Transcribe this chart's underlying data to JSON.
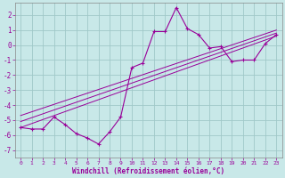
{
  "xlabel": "Windchill (Refroidissement éolien,°C)",
  "background_color": "#c8e8e8",
  "grid_color": "#a0c8c8",
  "line_color": "#990099",
  "xlim": [
    -0.5,
    23.5
  ],
  "ylim": [
    -7.5,
    2.8
  ],
  "xticks": [
    0,
    1,
    2,
    3,
    4,
    5,
    6,
    7,
    8,
    9,
    10,
    11,
    12,
    13,
    14,
    15,
    16,
    17,
    18,
    19,
    20,
    21,
    22,
    23
  ],
  "yticks": [
    -7,
    -6,
    -5,
    -4,
    -3,
    -2,
    -1,
    0,
    1,
    2
  ],
  "main_line_x": [
    0,
    1,
    2,
    3,
    4,
    5,
    6,
    7,
    8,
    9,
    10,
    11,
    12,
    13,
    14,
    15,
    16,
    17,
    18,
    19,
    20,
    21,
    22,
    23
  ],
  "main_line_y": [
    -5.5,
    -5.6,
    -5.6,
    -4.8,
    -5.3,
    -5.9,
    -6.2,
    -6.6,
    -5.8,
    -4.8,
    -1.5,
    -1.2,
    0.9,
    0.9,
    2.5,
    1.1,
    0.7,
    -0.2,
    -0.1,
    -1.1,
    -1.0,
    -1.0,
    0.1,
    0.7
  ],
  "reg_line1_x": [
    0,
    23
  ],
  "reg_line1_y": [
    -5.5,
    0.6
  ],
  "reg_line2_x": [
    0,
    23
  ],
  "reg_line2_y": [
    -5.1,
    0.8
  ],
  "reg_line3_x": [
    0,
    23
  ],
  "reg_line3_y": [
    -4.7,
    1.0
  ]
}
